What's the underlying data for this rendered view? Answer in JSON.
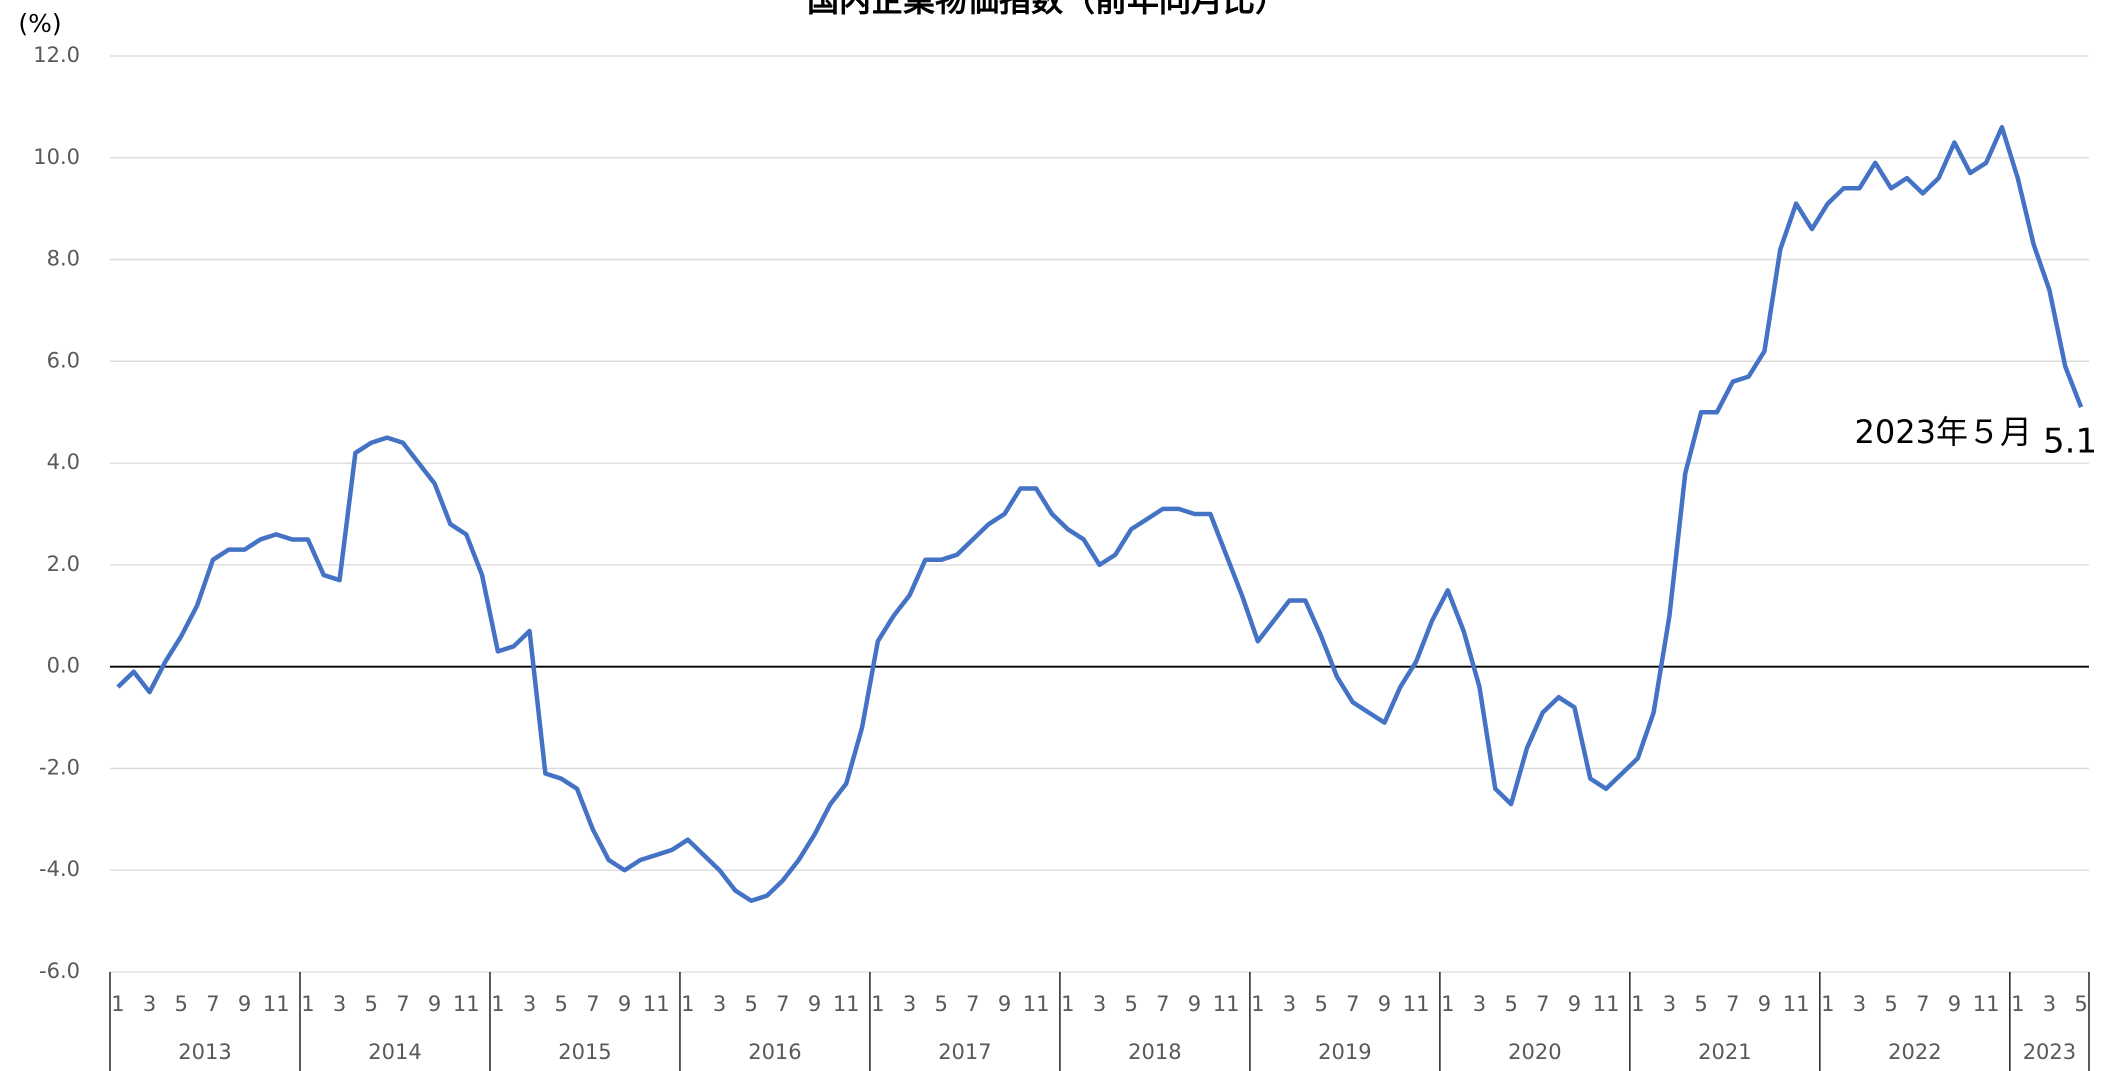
{
  "chart_data": {
    "type": "line",
    "title": "国内企業物価指数（前年同月比）",
    "y_unit": "(%)",
    "categories": [
      "1",
      null,
      "3",
      null,
      "5",
      null,
      "7",
      null,
      "9",
      null,
      "11",
      null,
      "1",
      null,
      "3",
      null,
      "5",
      null,
      "7",
      null,
      "9",
      null,
      "11",
      null,
      "1",
      null,
      "3",
      null,
      "5",
      null,
      "7",
      null,
      "9",
      null,
      "11",
      null,
      "1",
      null,
      "3",
      null,
      "5",
      null,
      "7",
      null,
      "9",
      null,
      "11",
      null,
      "1",
      null,
      "3",
      null,
      "5",
      null,
      "7",
      null,
      "9",
      null,
      "11",
      null,
      "1",
      null,
      "3",
      null,
      "5",
      null,
      "7",
      null,
      "9",
      null,
      "11",
      null,
      "1",
      null,
      "3",
      null,
      "5",
      null,
      "7",
      null,
      "9",
      null,
      "11",
      null,
      "1",
      null,
      "3",
      null,
      "5",
      null,
      "7",
      null,
      "9",
      null,
      "11",
      null,
      "1",
      null,
      "3",
      null,
      "5",
      null,
      "7",
      null,
      "9",
      null,
      "11",
      null,
      "1",
      null,
      "3",
      null,
      "5",
      null,
      "7",
      null,
      "9",
      null,
      "11",
      null,
      "1",
      null,
      "3",
      null,
      "5"
    ],
    "x_group_labels": [
      "2013",
      "2014",
      "2015",
      "2016",
      "2017",
      "2018",
      "2019",
      "2020",
      "2021",
      "2022",
      "2023"
    ],
    "series": [
      {
        "color": "#4472c4",
        "values": [
          -0.4,
          -0.1,
          -0.5,
          0.1,
          0.6,
          1.2,
          2.1,
          2.3,
          2.3,
          2.5,
          2.6,
          2.5,
          2.5,
          1.8,
          1.7,
          4.2,
          4.4,
          4.5,
          4.4,
          4.0,
          3.6,
          2.8,
          2.6,
          1.8,
          0.3,
          0.4,
          0.7,
          -2.1,
          -2.2,
          -2.4,
          -3.2,
          -3.8,
          -4.0,
          -3.8,
          -3.7,
          -3.6,
          -3.4,
          -3.7,
          -4.0,
          -4.4,
          -4.6,
          -4.5,
          -4.2,
          -3.8,
          -3.3,
          -2.7,
          -2.3,
          -1.2,
          0.5,
          1.0,
          1.4,
          2.1,
          2.1,
          2.2,
          2.5,
          2.8,
          3.0,
          3.5,
          3.5,
          3.0,
          2.7,
          2.5,
          2.0,
          2.2,
          2.7,
          2.9,
          3.1,
          3.1,
          3.0,
          3.0,
          2.2,
          1.4,
          0.5,
          0.9,
          1.3,
          1.3,
          0.6,
          -0.2,
          -0.7,
          -0.9,
          -1.1,
          -0.4,
          0.1,
          0.9,
          1.5,
          0.7,
          -0.4,
          -2.4,
          -2.7,
          -1.6,
          -0.9,
          -0.6,
          -0.8,
          -2.2,
          -2.4,
          -2.1,
          -1.8,
          -0.9,
          1.0,
          3.8,
          5.0,
          5.0,
          5.6,
          5.7,
          6.2,
          8.2,
          9.1,
          8.6,
          9.1,
          9.4,
          9.4,
          9.9,
          9.4,
          9.6,
          9.3,
          9.6,
          10.3,
          9.7,
          9.9,
          10.6,
          9.6,
          8.3,
          7.4,
          5.9,
          5.1
        ]
      }
    ],
    "annotation": "2023年５月",
    "ylim": [
      -6,
      12
    ],
    "yticks": [
      {
        "value": -6,
        "label": "-6.0"
      },
      {
        "value": -4,
        "label": "-4.0"
      },
      {
        "value": -2,
        "label": "-2.0"
      },
      {
        "value": 0,
        "label": "0.0"
      },
      {
        "value": 2,
        "label": "2.0"
      },
      {
        "value": 4,
        "label": "4.0"
      },
      {
        "value": 6,
        "label": "6.0"
      },
      {
        "value": 8,
        "label": "8.0"
      },
      {
        "value": 10,
        "label": "10.0"
      },
      {
        "value": 12,
        "label": "12.0"
      }
    ],
    "grid": true
  }
}
